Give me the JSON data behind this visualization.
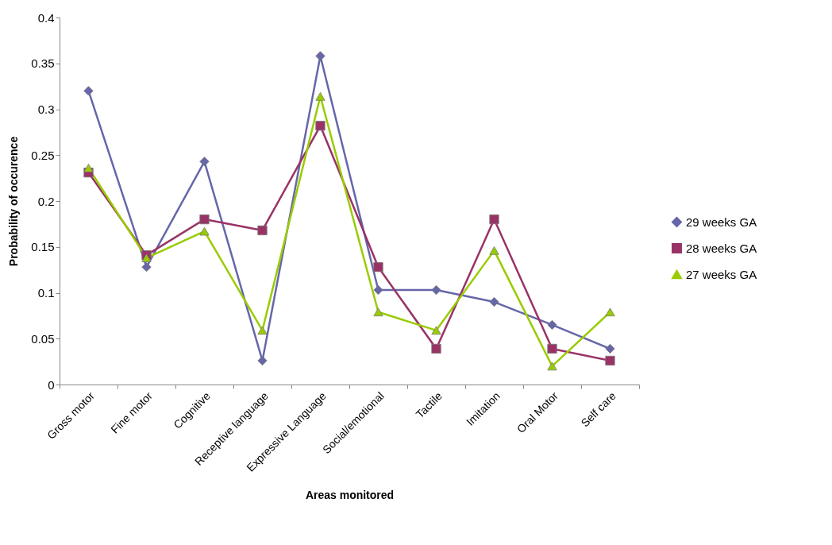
{
  "chart_data": {
    "type": "line",
    "xlabel": "Areas monitored",
    "ylabel": "Probability of occurence",
    "categories": [
      "Gross motor",
      "Fine motor",
      "Cognitive",
      "Receptive language",
      "Expressive Language",
      "Social/emotional",
      "Tactile",
      "Imitation",
      "Oral Motor",
      "Self care"
    ],
    "series": [
      {
        "name": "29 weeks GA",
        "color": "#6666aa",
        "marker": "diamond",
        "values": [
          0.32,
          0.128,
          0.243,
          0.026,
          0.358,
          0.103,
          0.103,
          0.09,
          0.065,
          0.039
        ]
      },
      {
        "name": "28 weeks GA",
        "color": "#993366",
        "marker": "square",
        "values": [
          0.231,
          0.141,
          0.18,
          0.168,
          0.282,
          0.128,
          0.039,
          0.18,
          0.039,
          0.026
        ]
      },
      {
        "name": "27 weeks GA",
        "color": "#99cc00",
        "marker": "triangle",
        "values": [
          0.236,
          0.138,
          0.167,
          0.059,
          0.314,
          0.079,
          0.059,
          0.146,
          0.02,
          0.079
        ]
      }
    ],
    "ylim": [
      0,
      0.4
    ],
    "yticks": [
      0,
      0.05,
      0.1,
      0.15,
      0.2,
      0.25,
      0.3,
      0.35,
      0.4
    ],
    "grid": false,
    "legend": "right",
    "line_style": "solid"
  }
}
